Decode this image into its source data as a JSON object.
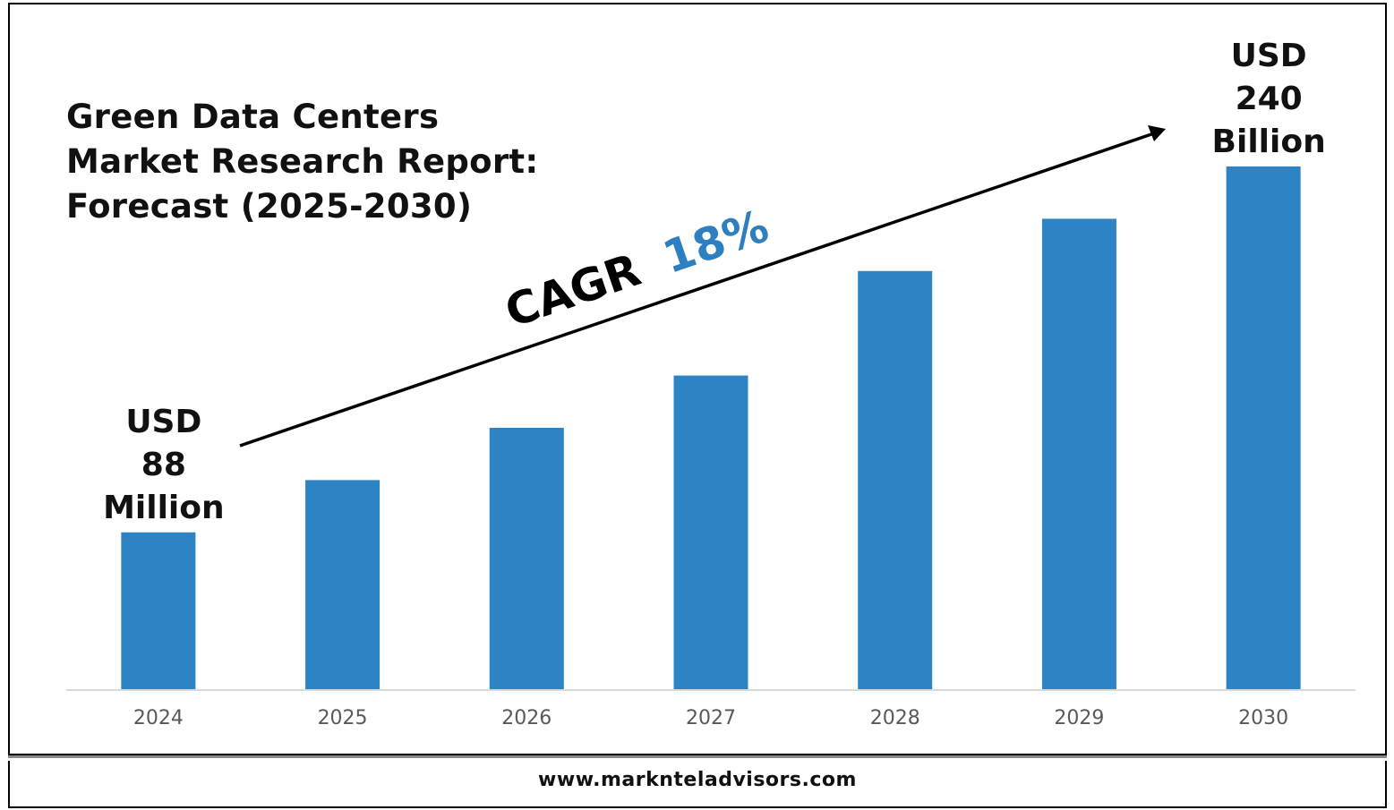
{
  "title_lines": [
    "Green Data Centers",
    "Market Research Report:",
    "Forecast (2025-2030)"
  ],
  "footer": {
    "website": "www.marknteladvisors.com"
  },
  "cagr": {
    "label": "CAGR",
    "value": "18%"
  },
  "colors": {
    "bar": "#2E83C4",
    "cagr_value": "#2E7EC2",
    "text": "#111111",
    "axis": "#D9D9D9",
    "tick": "#595959"
  },
  "chart_data": {
    "type": "bar",
    "categories": [
      "2024",
      "2025",
      "2026",
      "2027",
      "2028",
      "2029",
      "2030"
    ],
    "series": [
      {
        "values": [
          30,
          40,
          50,
          60,
          80,
          90,
          100
        ]
      }
    ],
    "ylim": [
      0,
      100
    ],
    "annotations": [
      {
        "category": "2024",
        "lines": [
          "USD",
          "88",
          "Million"
        ]
      },
      {
        "category": "2030",
        "lines": [
          "USD",
          "240",
          "Billion"
        ]
      }
    ],
    "grid": false,
    "legend": "none",
    "xlabel": "",
    "ylabel": ""
  }
}
